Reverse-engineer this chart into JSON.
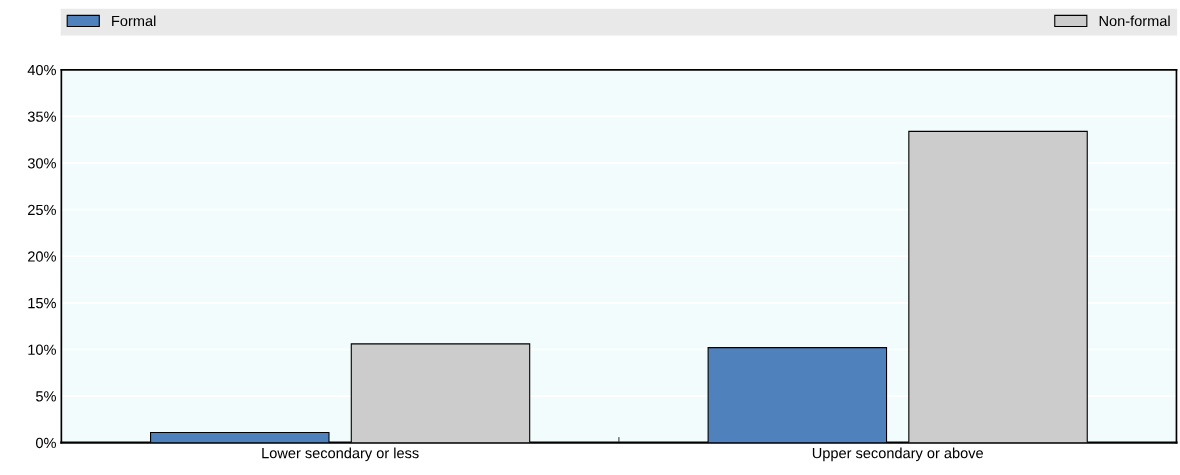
{
  "chart_data": {
    "type": "bar",
    "categories": [
      "Lower secondary or less",
      "Upper secondary or above"
    ],
    "series": [
      {
        "name": "Formal",
        "color": "#4f81bd",
        "values": [
          1.1,
          10.2
        ]
      },
      {
        "name": "Non-formal",
        "color": "#cccccc",
        "values": [
          10.6,
          33.4
        ]
      }
    ],
    "ylim": [
      0,
      40
    ],
    "yticks": [
      {
        "value": 0,
        "label": "0%"
      },
      {
        "value": 5,
        "label": "5%"
      },
      {
        "value": 10,
        "label": "10%"
      },
      {
        "value": 15,
        "label": "15%"
      },
      {
        "value": 20,
        "label": "20%"
      },
      {
        "value": 25,
        "label": "25%"
      },
      {
        "value": 30,
        "label": "30%"
      },
      {
        "value": 35,
        "label": "35%"
      },
      {
        "value": 40,
        "label": "40%"
      }
    ],
    "grid": "y",
    "legend": "top"
  }
}
